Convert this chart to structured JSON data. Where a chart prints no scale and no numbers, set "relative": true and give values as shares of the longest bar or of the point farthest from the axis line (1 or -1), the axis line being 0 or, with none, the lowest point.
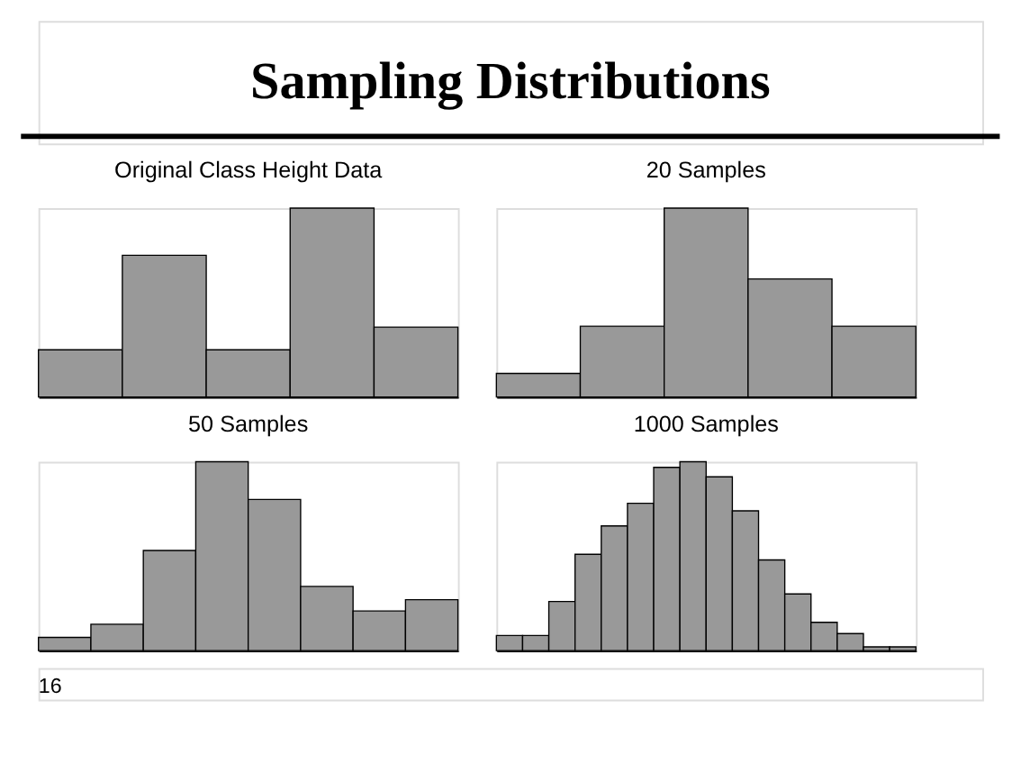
{
  "chart_data": [
    {
      "type": "other",
      "title": "Sampling Distributions",
      "annotations": [
        "16"
      ]
    },
    {
      "type": "bar",
      "title": "Original Class Height Data",
      "relative": true,
      "tick_labels": false,
      "categories": [
        null,
        null,
        null,
        null,
        null
      ],
      "color": "#999999",
      "values": [
        0.25,
        0.75,
        0.25,
        1,
        0.37
      ]
    },
    {
      "type": "bar",
      "title": "20 Samples",
      "relative": true,
      "tick_labels": false,
      "categories": [
        null,
        null,
        null,
        null,
        null
      ],
      "color": "#999999",
      "values": [
        0.125,
        0.375,
        1,
        0.625,
        0.375
      ]
    },
    {
      "type": "bar",
      "title": "50 Samples",
      "relative": true,
      "tick_labels": false,
      "categories": [
        null,
        null,
        null,
        null,
        null,
        null,
        null,
        null
      ],
      "color": "#999999",
      "values": [
        0.07,
        0.14,
        0.53,
        1,
        0.8,
        0.34,
        0.21,
        0.27
      ]
    },
    {
      "type": "bar",
      "title": "1000 Samples",
      "relative": true,
      "tick_labels": false,
      "categories": [
        null,
        null,
        null,
        null,
        null,
        null,
        null,
        null,
        null,
        null,
        null,
        null,
        null,
        null,
        null,
        null
      ],
      "color": "#999999",
      "values": [
        0.08,
        0.08,
        0.26,
        0.51,
        0.66,
        0.78,
        0.97,
        1,
        0.92,
        0.74,
        0.48,
        0.3,
        0.15,
        0.09,
        0.02,
        0.02
      ]
    }
  ]
}
